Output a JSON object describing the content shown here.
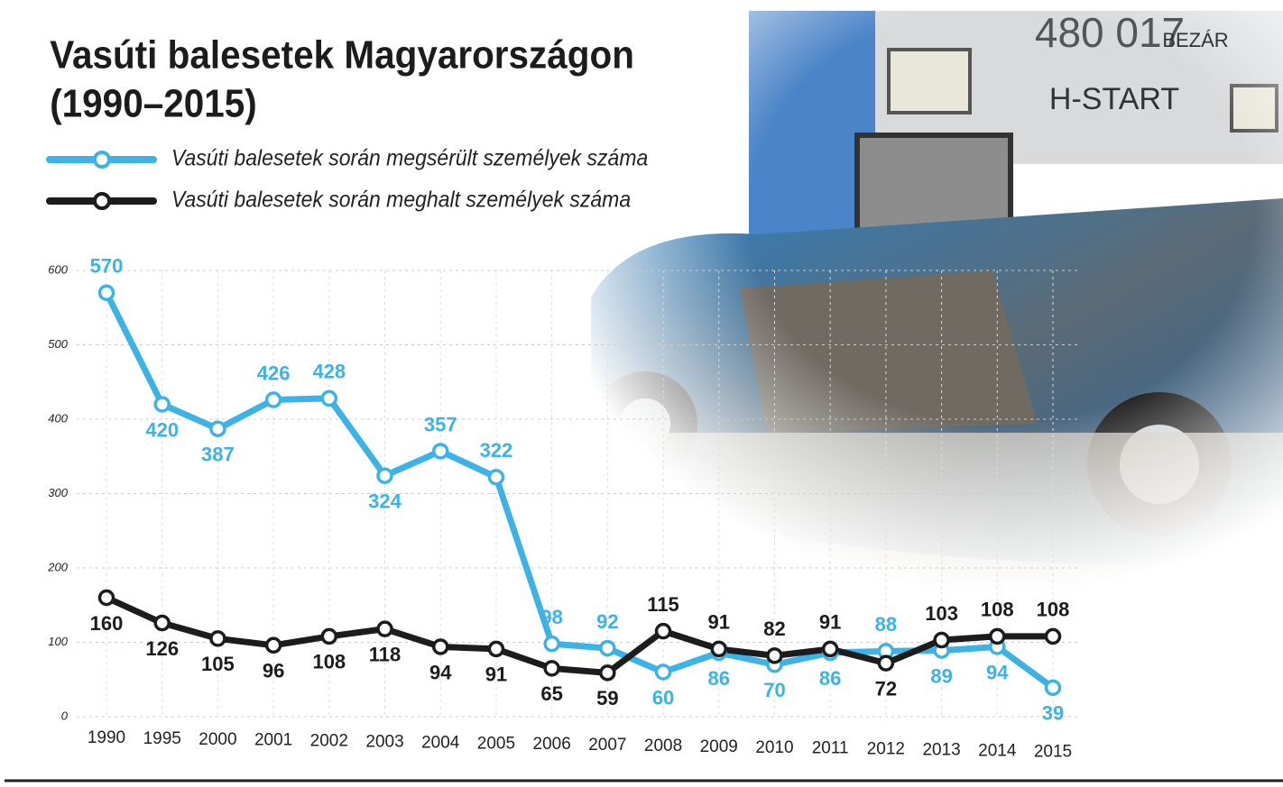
{
  "chart_data": {
    "type": "line",
    "title": "Vasúti balesetek Magyarországon",
    "subtitle": "(1990–2015)",
    "close_button": "BEZÁR",
    "photo_texts": [
      "480 017",
      "H-START"
    ],
    "categories": [
      "1990",
      "1995",
      "2000",
      "2001",
      "2002",
      "2003",
      "2004",
      "2005",
      "2006",
      "2007",
      "2008",
      "2009",
      "2010",
      "2011",
      "2012",
      "2013",
      "2014",
      "2015"
    ],
    "series": [
      {
        "name": "Vasúti balesetek során megsérült személyek száma",
        "color": "#3db2e6",
        "values": [
          570,
          420,
          387,
          426,
          428,
          324,
          357,
          322,
          98,
          92,
          60,
          86,
          70,
          86,
          88,
          89,
          94,
          39
        ]
      },
      {
        "name": "Vasúti balesetek során meghalt személyek száma",
        "color": "#1c1c1c",
        "values": [
          160,
          126,
          105,
          96,
          108,
          118,
          94,
          91,
          65,
          59,
          115,
          91,
          82,
          91,
          72,
          103,
          108,
          108
        ]
      }
    ],
    "ylim": [
      0,
      600
    ],
    "yticks": [
      0,
      100,
      200,
      300,
      400,
      500,
      600
    ],
    "grid": true,
    "legend": "top-left"
  }
}
